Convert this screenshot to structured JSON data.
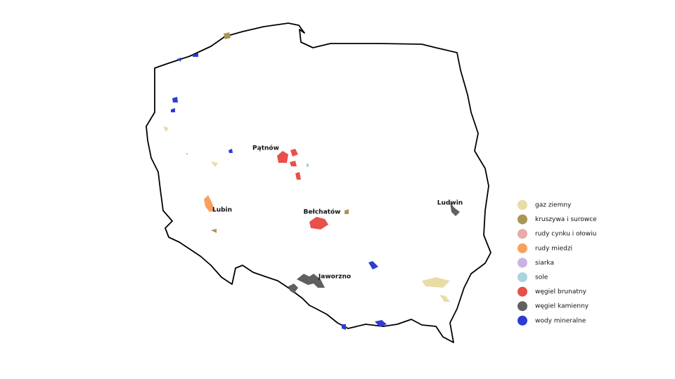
{
  "map": {
    "places": [
      "Pątnów",
      "Bełchatów",
      "Lubin",
      "Ludwin",
      "Jaworzno"
    ],
    "legend": [
      {
        "label": "gaz ziemny",
        "color": "#e9dca6"
      },
      {
        "label": "kruszywa i surowce",
        "color": "#a89654"
      },
      {
        "label": "rudy cynku i ołowiu",
        "color": "#e8aaaa"
      },
      {
        "label": "rudy miedzi",
        "color": "#f7a060"
      },
      {
        "label": "siarka",
        "color": "#c8b4e4"
      },
      {
        "label": "sole",
        "color": "#a8d4e0"
      },
      {
        "label": "węgiel brunatny",
        "color": "#e8504a"
      },
      {
        "label": "węgiel kamienny",
        "color": "#606060"
      },
      {
        "label": "wody mineralne",
        "color": "#2e3bd4"
      }
    ]
  }
}
